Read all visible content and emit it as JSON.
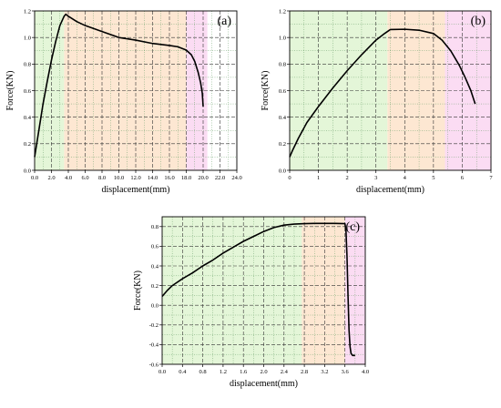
{
  "figure": {
    "background": "#ffffff",
    "region_colors": {
      "green": "#e4f6d8",
      "orange": "#fde7d2",
      "pink": "#fbdcf3"
    }
  },
  "chart_data": [
    {
      "panel": "(a)",
      "type": "line",
      "xlabel": "displacement(mm)",
      "ylabel": "Force(KN)",
      "xlim": [
        0,
        24
      ],
      "ylim": [
        0,
        1.2
      ],
      "xticks": [
        0,
        2,
        4,
        6,
        8,
        10,
        12,
        14,
        16,
        18,
        20,
        22,
        24
      ],
      "xtick_labels": [
        "0.0",
        "2.0",
        "4.0",
        "6.0",
        "8.0",
        "10.0",
        "12.0",
        "14.0",
        "16.0",
        "18.0",
        "20.0",
        "22.0",
        "24.0"
      ],
      "yticks": [
        0,
        0.2,
        0.4,
        0.6,
        0.8,
        1.0,
        1.2
      ],
      "ytick_labels": [
        "0.0",
        "0.2",
        "0.4",
        "0.6",
        "0.8",
        "1.0",
        "1.2"
      ],
      "grid": true,
      "regions": [
        {
          "from": 0,
          "to": 3.5,
          "color": "green"
        },
        {
          "from": 3.5,
          "to": 18,
          "color": "orange"
        },
        {
          "from": 18,
          "to": 20.5,
          "color": "pink"
        }
      ],
      "series": [
        {
          "x": [
            0,
            0.5,
            1.0,
            1.5,
            2.0,
            2.5,
            3.0,
            3.5,
            3.7,
            4.0,
            5.0,
            6.0,
            8.0,
            10.0,
            12.0,
            14.0,
            16.0,
            17.0,
            18.0,
            18.6,
            19.0,
            19.4,
            19.7,
            19.9,
            20.0
          ],
          "y": [
            0.1,
            0.3,
            0.5,
            0.67,
            0.83,
            0.97,
            1.09,
            1.16,
            1.175,
            1.16,
            1.12,
            1.09,
            1.045,
            1.0,
            0.98,
            0.955,
            0.94,
            0.93,
            0.905,
            0.87,
            0.82,
            0.74,
            0.66,
            0.58,
            0.48
          ]
        }
      ]
    },
    {
      "panel": "(b)",
      "type": "line",
      "xlabel": "displacement(mm)",
      "ylabel": "Force(KN)",
      "xlim": [
        0,
        7
      ],
      "ylim": [
        0,
        1.2
      ],
      "xticks": [
        0,
        1,
        2,
        3,
        4,
        5,
        6,
        7
      ],
      "xtick_labels": [
        "0",
        "1",
        "2",
        "3",
        "4",
        "5",
        "6",
        "7"
      ],
      "yticks": [
        0,
        0.2,
        0.4,
        0.6,
        0.8,
        1.0,
        1.2
      ],
      "ytick_labels": [
        "0.0",
        "0.2",
        "0.4",
        "0.6",
        "0.8",
        "1.0",
        "1.2"
      ],
      "grid": true,
      "regions": [
        {
          "from": 0,
          "to": 3.4,
          "color": "green"
        },
        {
          "from": 3.4,
          "to": 5.4,
          "color": "orange"
        },
        {
          "from": 5.4,
          "to": 7.0,
          "color": "pink"
        }
      ],
      "series": [
        {
          "x": [
            0,
            0.1,
            0.3,
            0.6,
            1.0,
            1.5,
            2.0,
            2.5,
            3.0,
            3.3,
            3.5,
            4.0,
            4.5,
            5.0,
            5.3,
            5.6,
            5.9,
            6.1,
            6.3,
            6.45
          ],
          "y": [
            0.1,
            0.15,
            0.24,
            0.36,
            0.48,
            0.62,
            0.75,
            0.87,
            0.98,
            1.03,
            1.06,
            1.062,
            1.055,
            1.03,
            0.98,
            0.9,
            0.79,
            0.7,
            0.6,
            0.5
          ]
        }
      ]
    },
    {
      "panel": "(c)",
      "type": "line",
      "xlabel": "displacement(mm)",
      "ylabel": "Force(KN)",
      "xlim": [
        0,
        4.0
      ],
      "ylim": [
        -0.6,
        0.9
      ],
      "xticks": [
        0,
        0.4,
        0.8,
        1.2,
        1.6,
        2.0,
        2.4,
        2.8,
        3.2,
        3.6,
        4.0
      ],
      "xtick_labels": [
        "0.0",
        "0.4",
        "0.8",
        "1.2",
        "1.6",
        "2.0",
        "2.4",
        "2.8",
        "3.2",
        "3.6",
        "4.0"
      ],
      "yticks": [
        -0.6,
        -0.4,
        -0.2,
        0,
        0.2,
        0.4,
        0.6,
        0.8
      ],
      "ytick_labels": [
        "-0.6",
        "-0.4",
        "-0.2",
        "0.0",
        "0.2",
        "0.4",
        "0.6",
        "0.8"
      ],
      "grid": true,
      "regions": [
        {
          "from": 0,
          "to": 2.75,
          "color": "green"
        },
        {
          "from": 2.75,
          "to": 3.6,
          "color": "orange"
        },
        {
          "from": 3.6,
          "to": 4.0,
          "color": "pink"
        }
      ],
      "series": [
        {
          "x": [
            0,
            0.1,
            0.2,
            0.4,
            0.6,
            0.8,
            1.0,
            1.2,
            1.4,
            1.6,
            1.8,
            2.0,
            2.2,
            2.4,
            2.6,
            2.8,
            3.0,
            3.2,
            3.4,
            3.6,
            3.62,
            3.64,
            3.66,
            3.68,
            3.7,
            3.72,
            3.75,
            3.8
          ],
          "y": [
            0.09,
            0.15,
            0.2,
            0.27,
            0.33,
            0.4,
            0.46,
            0.53,
            0.59,
            0.65,
            0.7,
            0.75,
            0.79,
            0.815,
            0.825,
            0.83,
            0.832,
            0.832,
            0.832,
            0.83,
            0.76,
            0.5,
            0.1,
            -0.25,
            -0.42,
            -0.49,
            -0.51,
            -0.51
          ]
        }
      ]
    }
  ]
}
